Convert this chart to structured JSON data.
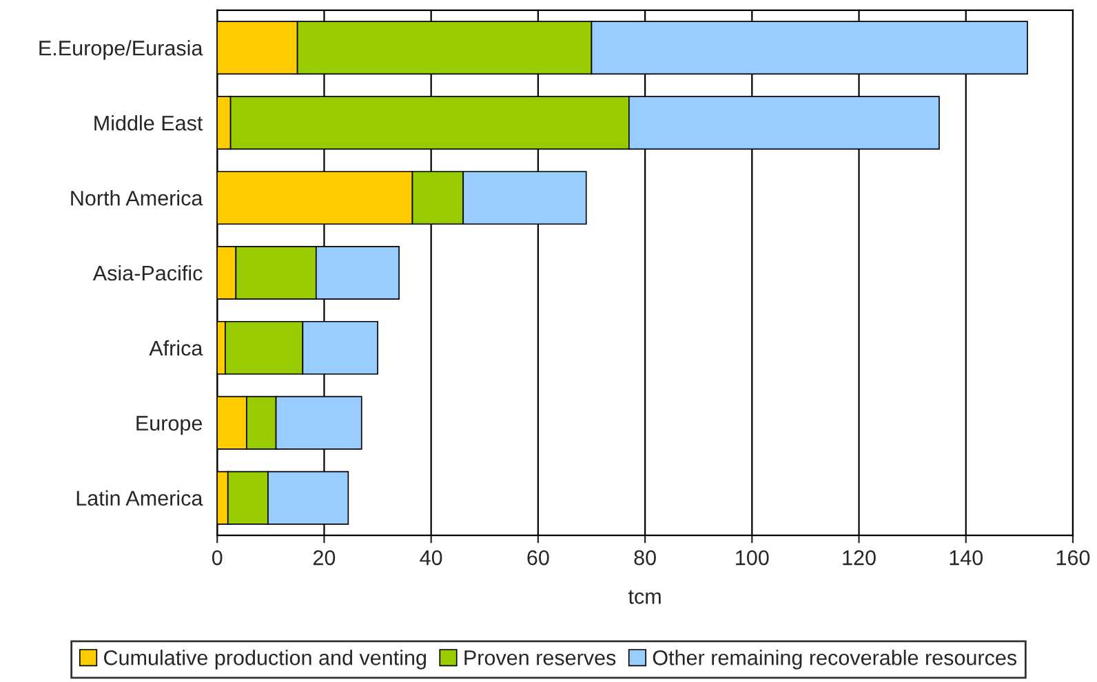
{
  "chart_data": {
    "type": "bar",
    "orientation": "horizontal",
    "stacked": true,
    "xlabel": "tcm",
    "categories": [
      "E.Europe/Eurasia",
      "Middle East",
      "North America",
      "Asia-Pacific",
      "Africa",
      "Europe",
      "Latin America"
    ],
    "series": [
      {
        "name": "Cumulative production and venting",
        "color": "#ffcc00",
        "values": [
          15,
          2.5,
          36.5,
          3.5,
          1.5,
          5.5,
          2
        ]
      },
      {
        "name": "Proven reserves",
        "color": "#99cc00",
        "values": [
          55,
          74.5,
          9.5,
          15,
          14.5,
          5.5,
          7.5
        ]
      },
      {
        "name": "Other remaining recoverable resources",
        "color": "#99ccff",
        "values": [
          81.5,
          58,
          23,
          15.5,
          14,
          16,
          15
        ]
      }
    ],
    "xlim": [
      0,
      160
    ],
    "xticks": [
      0,
      20,
      40,
      60,
      80,
      100,
      120,
      140,
      160
    ],
    "grid": "x",
    "legend": "bottom"
  }
}
